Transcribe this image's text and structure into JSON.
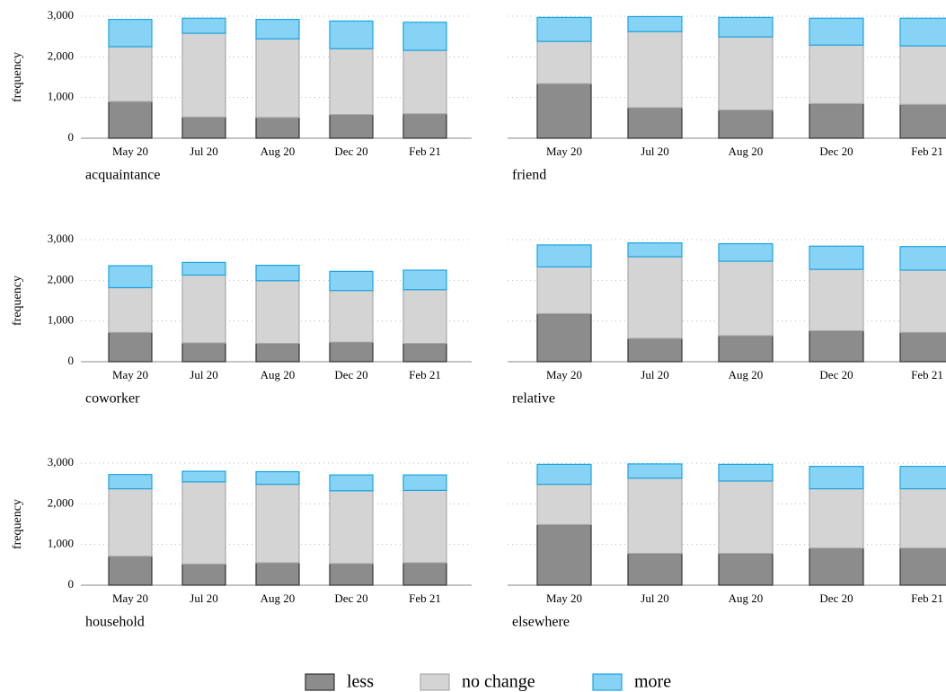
{
  "chart_data": {
    "type": "bar",
    "stacked": true,
    "ylabel": "frequency",
    "categories": [
      "May 20",
      "Jul 20",
      "Aug 20",
      "Dec 20",
      "Feb 21"
    ],
    "ylim": [
      0,
      3000
    ],
    "yticks": [
      0,
      {
        "value": 1000,
        "label": "1,000"
      },
      {
        "value": 2000,
        "label": "2,000"
      },
      {
        "value": 3000,
        "label": "3,000"
      }
    ],
    "grid": true,
    "series": [
      {
        "name": "less",
        "color": "#8c8c8c"
      },
      {
        "name": "no change",
        "color": "#d4d4d4"
      },
      {
        "name": "more",
        "color": "#87d3f5"
      }
    ],
    "panels": [
      {
        "title": "acquaintance",
        "values": [
          [
            900,
            520,
            510,
            580,
            600
          ],
          [
            1350,
            2060,
            1930,
            1620,
            1560
          ],
          [
            670,
            370,
            480,
            680,
            690
          ]
        ]
      },
      {
        "title": "friend",
        "values": [
          [
            1340,
            750,
            690,
            850,
            830
          ],
          [
            1040,
            1870,
            1800,
            1440,
            1440
          ],
          [
            590,
            370,
            480,
            660,
            680
          ]
        ]
      },
      {
        "title": "coworker",
        "values": [
          [
            720,
            460,
            450,
            480,
            450
          ],
          [
            1100,
            1670,
            1540,
            1270,
            1320
          ],
          [
            540,
            310,
            380,
            470,
            480
          ]
        ]
      },
      {
        "title": "relative",
        "values": [
          [
            1180,
            570,
            640,
            760,
            720
          ],
          [
            1150,
            2010,
            1830,
            1510,
            1530
          ],
          [
            540,
            340,
            430,
            570,
            580
          ]
        ]
      },
      {
        "title": "household",
        "values": [
          [
            710,
            520,
            550,
            530,
            550
          ],
          [
            1660,
            2020,
            1930,
            1790,
            1780
          ],
          [
            350,
            260,
            310,
            390,
            380
          ]
        ]
      },
      {
        "title": "elsewhere",
        "values": [
          [
            1490,
            780,
            780,
            910,
            910
          ],
          [
            990,
            1850,
            1780,
            1460,
            1460
          ],
          [
            490,
            350,
            410,
            550,
            550
          ]
        ]
      }
    ]
  }
}
